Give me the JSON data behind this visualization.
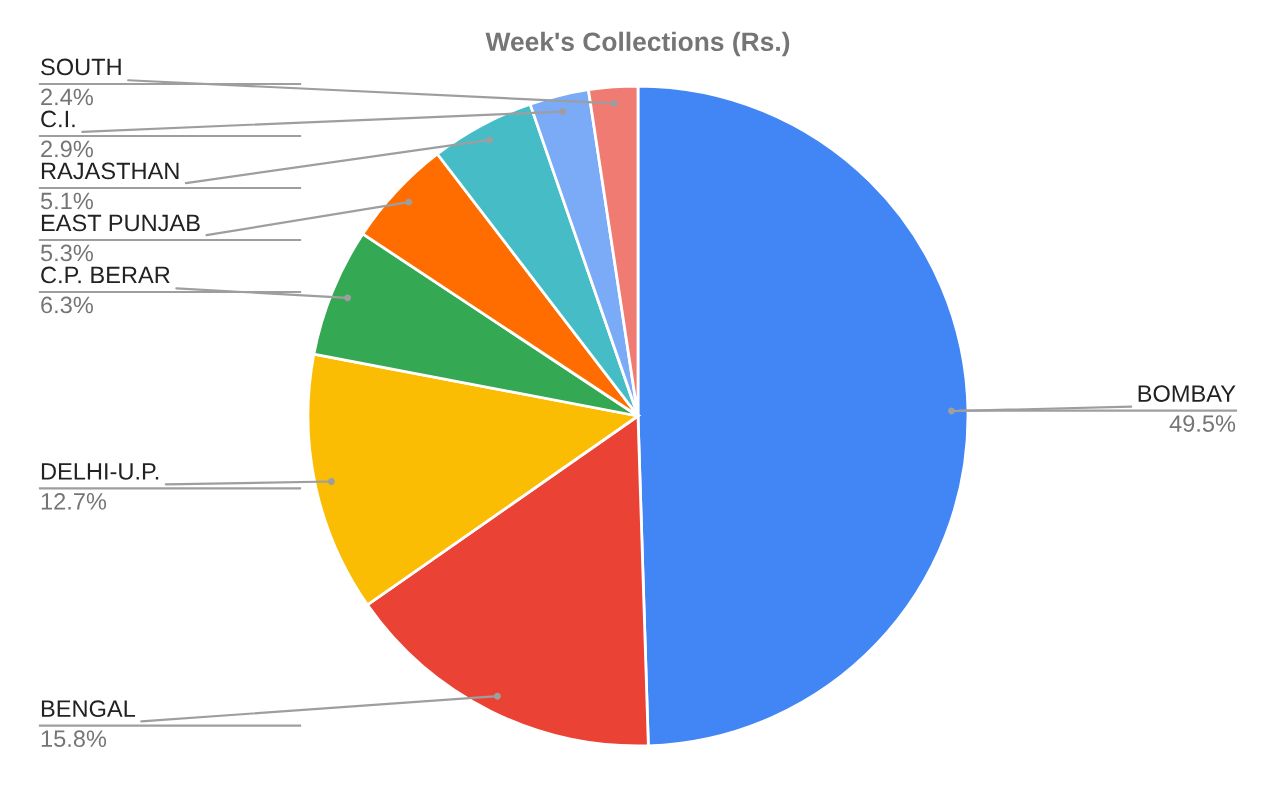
{
  "chart_data": {
    "type": "pie",
    "title": "Week's Collections (Rs.)",
    "categories": [
      "BOMBAY",
      "BENGAL",
      "DELHI-U.P.",
      "C.P. BERAR",
      "EAST PUNJAB",
      "RAJASTHAN",
      "C.I.",
      "SOUTH"
    ],
    "values": [
      49.5,
      15.8,
      12.7,
      6.3,
      5.3,
      5.1,
      2.9,
      2.4
    ],
    "value_labels": [
      "49.5%",
      "15.8%",
      "12.7%",
      "6.3%",
      "5.3%",
      "5.1%",
      "2.9%",
      "2.4%"
    ],
    "colors": [
      "#4285f4",
      "#ea4335",
      "#fbbc04",
      "#34a853",
      "#ff6d01",
      "#46bdc6",
      "#7baaf7",
      "#f07b72"
    ],
    "legend": false
  }
}
